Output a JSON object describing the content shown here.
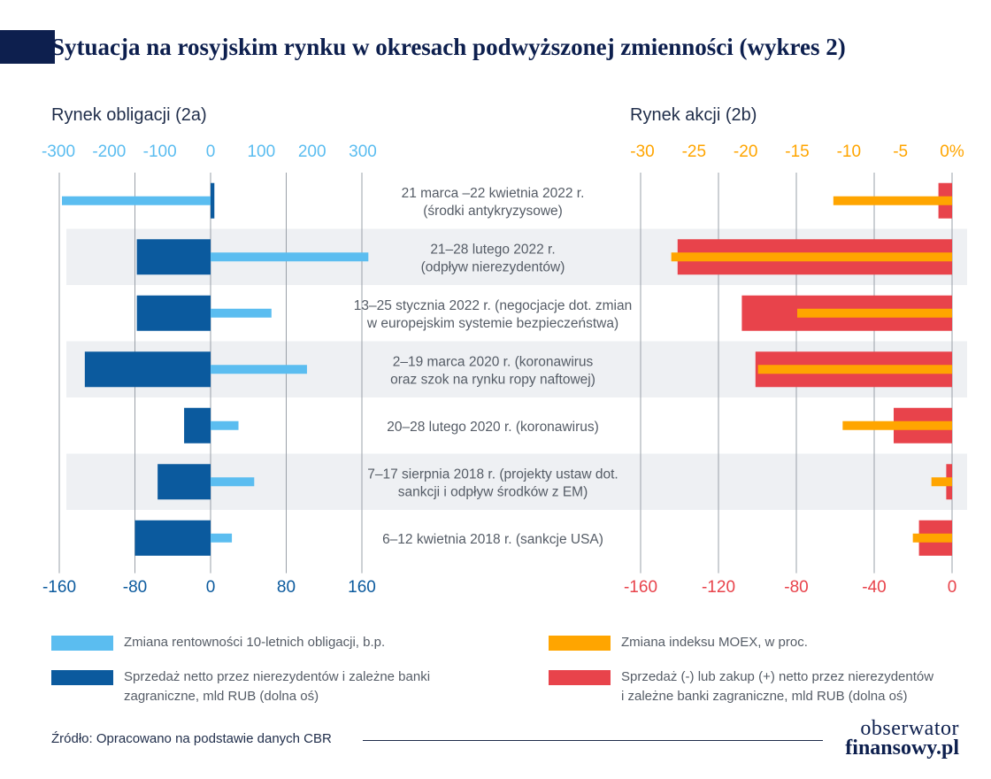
{
  "title": "Sytuacja na rosyjskim rynku w okresach podwyższonej zmienności (wykres 2)",
  "source": "Źródło: Opracowano na podstawie danych CBR",
  "logo": {
    "line1": "obserwator",
    "line2": "finansowy.pl"
  },
  "colors": {
    "light_blue": "#5bbdf0",
    "dark_blue": "#0b5a9e",
    "orange": "#ffa500",
    "red": "#e8434b",
    "band": "#eef0f3"
  },
  "legend": [
    {
      "label": "Zmiana rentowności 10-letnich obligacji, b.p.",
      "color": "#5bbdf0"
    },
    {
      "label": "Zmiana indeksu MOEX, w proc.",
      "color": "#ffa500"
    },
    {
      "label": "Sprzedaż netto przez nierezydentów i zależne banki\nzagraniczne, mld RUB (dolna oś)",
      "color": "#0b5a9e"
    },
    {
      "label": "Sprzedaż (-) lub zakup (+) netto przez nierezydentów\ni zależne banki zagraniczne, mld RUB (dolna oś)",
      "color": "#e8434b"
    }
  ],
  "chart_data": [
    {
      "type": "bar",
      "orientation": "horizontal",
      "title": "Rynek obligacji (2a)",
      "categories": [
        "21 marca –22 kwietnia 2022 r.\n(środki antykryzysowe)",
        "21–28 lutego 2022 r.\n(odpływ nierezydentów)",
        "13–25 stycznia 2022 r. (negocjacje dot. zmian\nw europejskim systemie bezpieczeństwa)",
        "2–19 marca 2020 r. (koronawirus\noraz szok na rynku ropy naftowej)",
        "20–28 lutego 2020 r. (koronawirus)",
        "7–17 sierpnia 2018 r. (projekty ustaw dot.\nsankcji i odpływ środków z EM)",
        "6–12 kwietnia 2018 r. (sankcje USA)"
      ],
      "top_axis": {
        "ticks": [
          -300,
          -200,
          -100,
          0,
          100,
          200,
          300
        ],
        "labels": [
          "-300",
          "-200",
          "-100",
          "0",
          "100",
          "200",
          "300"
        ],
        "range": [
          -300,
          300
        ]
      },
      "bottom_axis": {
        "ticks": [
          -160,
          -80,
          0,
          80,
          160
        ],
        "labels": [
          "-160",
          "-80",
          "0",
          "80",
          "160"
        ],
        "range": [
          -160,
          160
        ]
      },
      "series": [
        {
          "name": "Zmiana rentowności 10-letnich obligacji, b.p.",
          "axis": "top",
          "values": [
            -293,
            311,
            120,
            190,
            55,
            86,
            42
          ]
        },
        {
          "name": "Sprzedaż netto przez nierezydentów i zależne banki zagraniczne, mld RUB (dolna oś)",
          "axis": "bottom",
          "values": [
            4,
            -78,
            -78,
            -133,
            -28,
            -56,
            -80
          ]
        }
      ]
    },
    {
      "type": "bar",
      "orientation": "horizontal",
      "title": "Rynek akcji (2b)",
      "top_axis": {
        "ticks": [
          -30,
          -25,
          -20,
          -15,
          -10,
          -5,
          0
        ],
        "labels": [
          "-30",
          "-25",
          "-20",
          "-15",
          "-10",
          "-5",
          "0%"
        ],
        "range": [
          -30,
          0
        ]
      },
      "bottom_axis": {
        "ticks": [
          -160,
          -120,
          -80,
          -40,
          0
        ],
        "labels": [
          "-160",
          "-120",
          "-80",
          "-40",
          "0"
        ],
        "range": [
          -160,
          0
        ]
      },
      "series": [
        {
          "name": "Zmiana indeksu MOEX, w proc.",
          "axis": "top",
          "values": [
            -11.5,
            -27.2,
            -15,
            -18.8,
            -10.6,
            -2,
            -3.8
          ]
        },
        {
          "name": "Sprzedaż (-) lub zakup (+) netto przez nierezydentów i zależne banki zagraniczne, mld RUB (dolna oś)",
          "axis": "bottom",
          "values": [
            -7,
            -141,
            -108,
            -101,
            -30,
            -3,
            -17
          ]
        }
      ]
    }
  ]
}
